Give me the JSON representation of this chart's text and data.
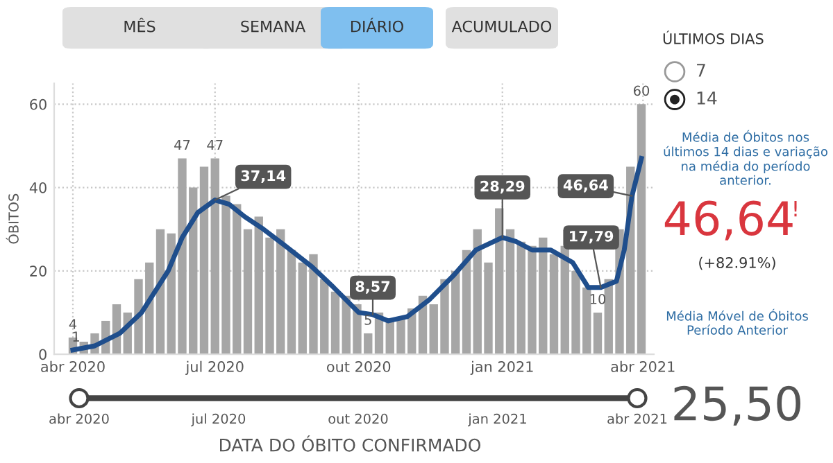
{
  "chart_data": [
    {
      "type": "bar",
      "ylabel": "ÓBITOS",
      "xlabel": "DATA DO ÓBITO CONFIRMADO",
      "xlim": [
        "2020-03-20",
        "2021-04-08"
      ],
      "ylim": [
        0,
        65
      ],
      "yticks": [
        0,
        20,
        40,
        60
      ],
      "xticks": [
        {
          "value": "2020-04-01",
          "label": "abr 2020"
        },
        {
          "value": "2020-07-01",
          "label": "jul 2020"
        },
        {
          "value": "2020-10-01",
          "label": "out 2020"
        },
        {
          "value": "2021-01-01",
          "label": "jan 2021"
        },
        {
          "value": "2021-04-01",
          "label": "abr 2021"
        }
      ],
      "grid": true,
      "series": [
        {
          "type": "bar",
          "color": "#a6a6a6",
          "x": [
            "2020-04-01",
            "2020-04-08",
            "2020-04-15",
            "2020-04-22",
            "2020-04-29",
            "2020-05-06",
            "2020-05-13",
            "2020-05-20",
            "2020-05-27",
            "2020-06-03",
            "2020-06-10",
            "2020-06-17",
            "2020-06-24",
            "2020-07-01",
            "2020-07-08",
            "2020-07-15",
            "2020-07-22",
            "2020-07-29",
            "2020-08-05",
            "2020-08-12",
            "2020-08-19",
            "2020-08-26",
            "2020-09-02",
            "2020-09-09",
            "2020-09-16",
            "2020-09-23",
            "2020-09-30",
            "2020-10-07",
            "2020-10-14",
            "2020-10-21",
            "2020-10-28",
            "2020-11-04",
            "2020-11-11",
            "2020-11-18",
            "2020-11-25",
            "2020-12-02",
            "2020-12-09",
            "2020-12-16",
            "2020-12-23",
            "2020-12-30",
            "2021-01-06",
            "2021-01-13",
            "2021-01-20",
            "2021-01-27",
            "2021-02-03",
            "2021-02-10",
            "2021-02-17",
            "2021-02-24",
            "2021-03-03",
            "2021-03-10",
            "2021-03-17",
            "2021-03-24",
            "2021-03-31"
          ],
          "values": [
            4,
            3,
            5,
            8,
            12,
            10,
            18,
            22,
            30,
            29,
            47,
            40,
            45,
            47,
            38,
            36,
            30,
            33,
            28,
            30,
            25,
            22,
            24,
            18,
            15,
            14,
            12,
            5,
            10,
            8,
            9,
            11,
            14,
            12,
            18,
            20,
            25,
            30,
            22,
            35,
            30,
            27,
            26,
            28,
            24,
            26,
            20,
            16,
            10,
            18,
            30,
            45,
            60
          ]
        },
        {
          "type": "line",
          "color": "#1f4e8c",
          "x": [
            "2020-04-01",
            "2020-04-15",
            "2020-05-01",
            "2020-05-15",
            "2020-06-01",
            "2020-06-10",
            "2020-06-20",
            "2020-07-01",
            "2020-07-10",
            "2020-07-20",
            "2020-08-01",
            "2020-08-15",
            "2020-09-01",
            "2020-09-15",
            "2020-10-01",
            "2020-10-10",
            "2020-10-20",
            "2020-11-01",
            "2020-11-15",
            "2020-12-01",
            "2020-12-15",
            "2021-01-01",
            "2021-01-10",
            "2021-01-20",
            "2021-02-01",
            "2021-02-15",
            "2021-02-25",
            "2021-03-05",
            "2021-03-15",
            "2021-03-20",
            "2021-03-25",
            "2021-03-31"
          ],
          "values": [
            1,
            2,
            5,
            10,
            20,
            28,
            34,
            37,
            36,
            33,
            30,
            26,
            21,
            16,
            10,
            9.5,
            8,
            9,
            13,
            19,
            25,
            28,
            27,
            25,
            25,
            22,
            16,
            16,
            17.5,
            25,
            38,
            47
          ]
        }
      ],
      "annotations": [
        {
          "text": "37,14",
          "x": "2020-07-01",
          "y": 37
        },
        {
          "text": "8,57",
          "x": "2020-10-10",
          "y": 9.5
        },
        {
          "text": "28,29",
          "x": "2021-01-01",
          "y": 28
        },
        {
          "text": "17,79",
          "x": "2021-03-05",
          "y": 16
        },
        {
          "text": "46,64",
          "x": "2021-03-25",
          "y": 38
        },
        {
          "text": "4",
          "x": "2020-04-01",
          "y": 4
        },
        {
          "text": "1",
          "x": "2020-04-03",
          "y": 1
        },
        {
          "text": "47",
          "x": "2020-06-10",
          "y": 47
        },
        {
          "text": "47",
          "x": "2020-07-01",
          "y": 47
        },
        {
          "text": "5",
          "x": "2020-10-07",
          "y": 5
        },
        {
          "text": "10",
          "x": "2021-03-03",
          "y": 10
        },
        {
          "text": "60",
          "x": "2021-03-31",
          "y": 60
        }
      ]
    },
    {
      "type": "other",
      "annotations": [
        "MÊS",
        "SEMANA",
        "DIÁRIO",
        "ACUMULADO",
        "ÚLTIMOS DIAS",
        "7",
        "14",
        "Média de Óbitos nos últimos 14 dias e variação na média do período anterior.",
        "46,64",
        "!",
        "(+82.91%)",
        "Média Móvel de Óbitos Período Anterior",
        "25,50",
        "abr 2020",
        "jul 2020",
        "out 2020",
        "jan 2021",
        "abr 2021"
      ]
    }
  ]
}
